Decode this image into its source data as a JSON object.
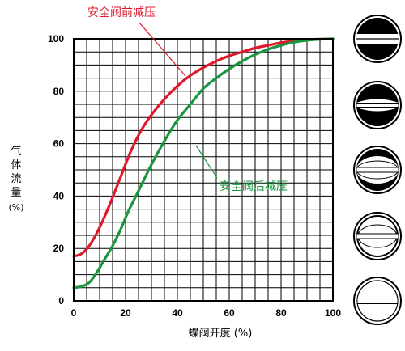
{
  "chart_data": {
    "type": "line",
    "title": "",
    "xlabel": "蝶阀开度 (%)",
    "ylabel_chars": [
      "气",
      "体",
      "流",
      "量"
    ],
    "ylabel_unit": "(%)",
    "xlim": [
      0,
      100
    ],
    "ylim": [
      0,
      100
    ],
    "x_ticks": [
      0,
      20,
      40,
      60,
      80,
      100
    ],
    "y_ticks": [
      0,
      20,
      40,
      60,
      80,
      100
    ],
    "x_tick_labels": [
      "0",
      "20",
      "40",
      "60",
      "80",
      "100"
    ],
    "y_tick_labels": [
      "0",
      "20",
      "40",
      "60",
      "80",
      "100"
    ],
    "grid": true,
    "grid_step": 5,
    "series": [
      {
        "name": "安全阀前减压",
        "color": "#e0192a",
        "x": [
          0,
          3,
          6,
          10,
          14,
          18,
          22,
          26,
          30,
          35,
          40,
          45,
          50,
          55,
          60,
          65,
          70,
          75,
          80,
          85,
          90,
          95,
          100
        ],
        "y": [
          17,
          18,
          21,
          28,
          37,
          47,
          57,
          65,
          71,
          77,
          82,
          86,
          89,
          91.5,
          93.5,
          95,
          96.5,
          97.5,
          98.5,
          99.2,
          99.6,
          99.9,
          100
        ]
      },
      {
        "name": "安全阀后减压",
        "color": "#1a9640",
        "x": [
          0,
          3,
          6,
          9,
          12,
          15,
          18,
          21,
          24,
          27,
          30,
          35,
          40,
          45,
          50,
          55,
          60,
          65,
          70,
          75,
          80,
          85,
          90,
          95,
          100
        ],
        "y": [
          5,
          5.5,
          7,
          11,
          16,
          21,
          27,
          34,
          40,
          46,
          52,
          61,
          69,
          75,
          81,
          85,
          88.5,
          91.5,
          94,
          96,
          97.5,
          98.7,
          99.4,
          99.8,
          100
        ]
      }
    ]
  },
  "valve_icons": [
    {
      "name": "valve-0-icon",
      "opening": "closed"
    },
    {
      "name": "valve-15-icon",
      "opening": "slightly-open"
    },
    {
      "name": "valve-30-icon",
      "opening": "partly-open"
    },
    {
      "name": "valve-60-icon",
      "opening": "mostly-open"
    },
    {
      "name": "valve-90-icon",
      "opening": "fully-open"
    }
  ]
}
